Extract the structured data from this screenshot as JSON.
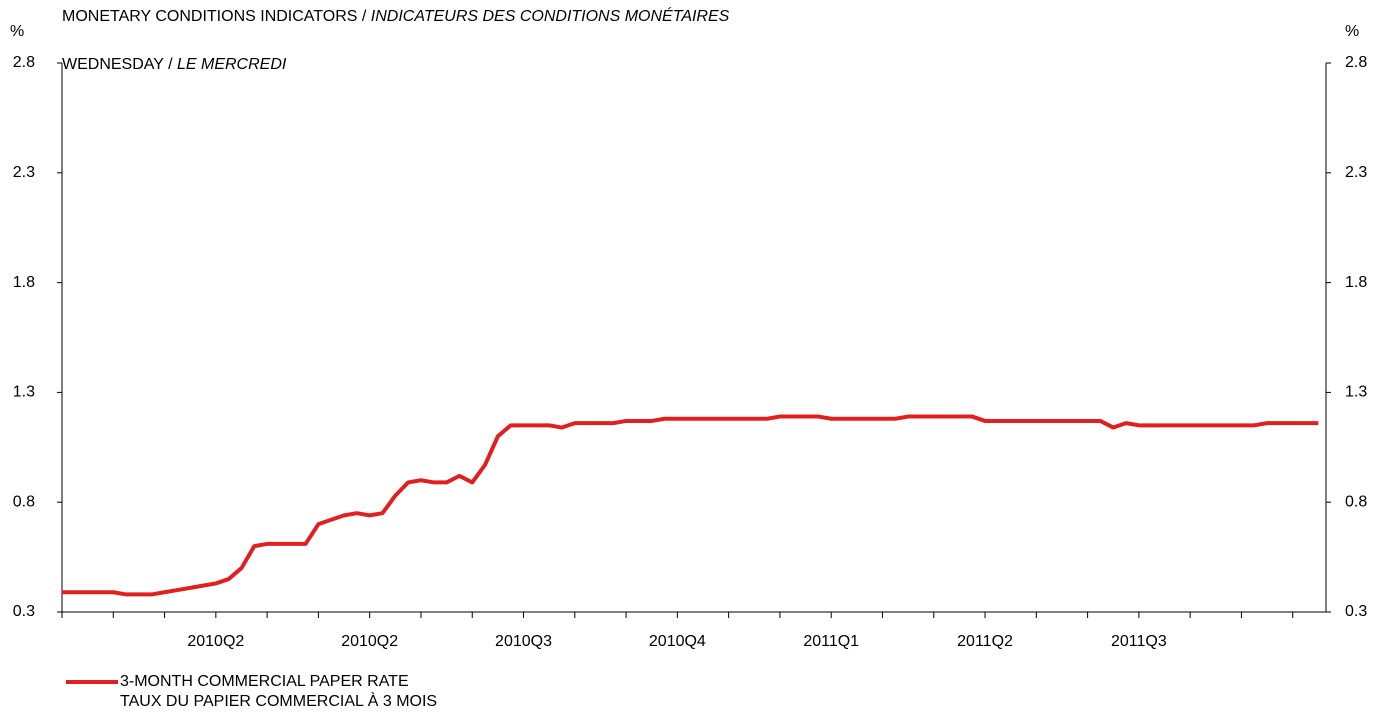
{
  "chart_data": {
    "type": "line",
    "title": [
      "MONETARY CONDITIONS INDICATORS / ",
      "INDICATEURS DES CONDITIONS MONÉTAIRES"
    ],
    "subtitle": [
      "WEDNESDAY / ",
      "LE MERCREDI"
    ],
    "y_label": "%",
    "y2_label": "%",
    "categories": [
      null,
      null,
      null,
      null,
      null,
      null,
      null,
      null,
      null,
      null,
      null,
      null,
      "2010Q2",
      null,
      null,
      null,
      null,
      null,
      null,
      null,
      null,
      null,
      null,
      null,
      "2010Q2",
      null,
      null,
      null,
      null,
      null,
      null,
      null,
      null,
      null,
      null,
      null,
      "2010Q3",
      null,
      null,
      null,
      null,
      null,
      null,
      null,
      null,
      null,
      null,
      null,
      "2010Q4",
      null,
      null,
      null,
      null,
      null,
      null,
      null,
      null,
      null,
      null,
      null,
      "2011Q1",
      null,
      null,
      null,
      null,
      null,
      null,
      null,
      null,
      null,
      null,
      null,
      "2011Q2",
      null,
      null,
      null,
      null,
      null,
      null,
      null,
      null,
      null,
      null,
      null,
      "2011Q3",
      null,
      null,
      null,
      null,
      null,
      null,
      null,
      null,
      null,
      null,
      null,
      null,
      null,
      null
    ],
    "series": [
      {
        "name": "3-MONTH COMMERCIAL PAPER RATE",
        "name_fr": "TAUX DU PAPIER COMMERCIAL À 3 MOIS",
        "color": "#e02020",
        "values": [
          0.39,
          0.39,
          0.39,
          0.39,
          0.39,
          0.38,
          0.38,
          0.38,
          0.39,
          0.4,
          0.41,
          0.42,
          0.43,
          0.45,
          0.5,
          0.6,
          0.61,
          0.61,
          0.61,
          0.61,
          0.7,
          0.72,
          0.74,
          0.75,
          0.74,
          0.75,
          0.83,
          0.89,
          0.9,
          0.89,
          0.89,
          0.92,
          0.89,
          0.97,
          1.1,
          1.15,
          1.15,
          1.15,
          1.15,
          1.14,
          1.16,
          1.16,
          1.16,
          1.16,
          1.17,
          1.17,
          1.17,
          1.18,
          1.18,
          1.18,
          1.18,
          1.18,
          1.18,
          1.18,
          1.18,
          1.18,
          1.19,
          1.19,
          1.19,
          1.19,
          1.18,
          1.18,
          1.18,
          1.18,
          1.18,
          1.18,
          1.19,
          1.19,
          1.19,
          1.19,
          1.19,
          1.19,
          1.17,
          1.17,
          1.17,
          1.17,
          1.17,
          1.17,
          1.17,
          1.17,
          1.17,
          1.17,
          1.14,
          1.16,
          1.15,
          1.15,
          1.15,
          1.15,
          1.15,
          1.15,
          1.15,
          1.15,
          1.15,
          1.15,
          1.16,
          1.16,
          1.16,
          1.16,
          1.16
        ]
      }
    ],
    "ylim": [
      0.3,
      2.8
    ],
    "yticks": [
      0.3,
      0.8,
      1.3,
      1.8,
      2.3,
      2.8
    ],
    "y2lim": [
      0.3,
      2.8
    ],
    "y2ticks": [
      0.3,
      0.8,
      1.3,
      1.8,
      2.3,
      2.8
    ],
    "grid": false
  }
}
